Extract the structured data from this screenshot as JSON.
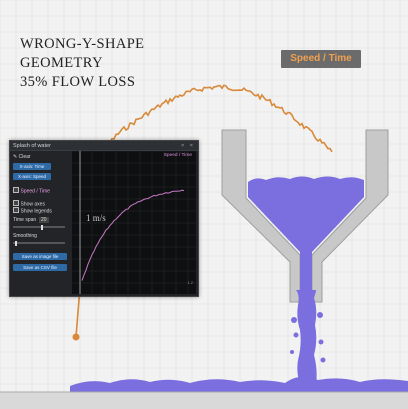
{
  "caption": {
    "line1": "WRONG-Y-SHAPE",
    "line2": "GEOMETRY",
    "line3": "35% FLOW LOSS"
  },
  "speed_legend": {
    "label": "Speed / Time",
    "color": "#d9893a",
    "text_color": "#f0a050"
  },
  "panel": {
    "title": "Splash of water",
    "window_controls": "× ×",
    "clear_label": "Clear",
    "xaxis_time_label": "X-axis: Time",
    "xaxis_speed_label": "X-axis: Speed",
    "speed_series_label": "Speed / Time",
    "show_axes_label": "Show axes",
    "show_legends_label": "Show legends",
    "time_span_label": "Time span",
    "time_span_value": "20",
    "smoothing_label": "Smoothing",
    "save_image_label": "Save as image file",
    "save_csv_label": "Save as CSV file",
    "plot_legend": "Speed / Time",
    "plot_unit_label": "1 m/s",
    "plot_corner": "1.2",
    "plot_line_color": "#c878c8"
  },
  "colors": {
    "water": "#7b6fe0",
    "funnel": "#c8c8c8",
    "background": "#f2f2f2"
  }
}
